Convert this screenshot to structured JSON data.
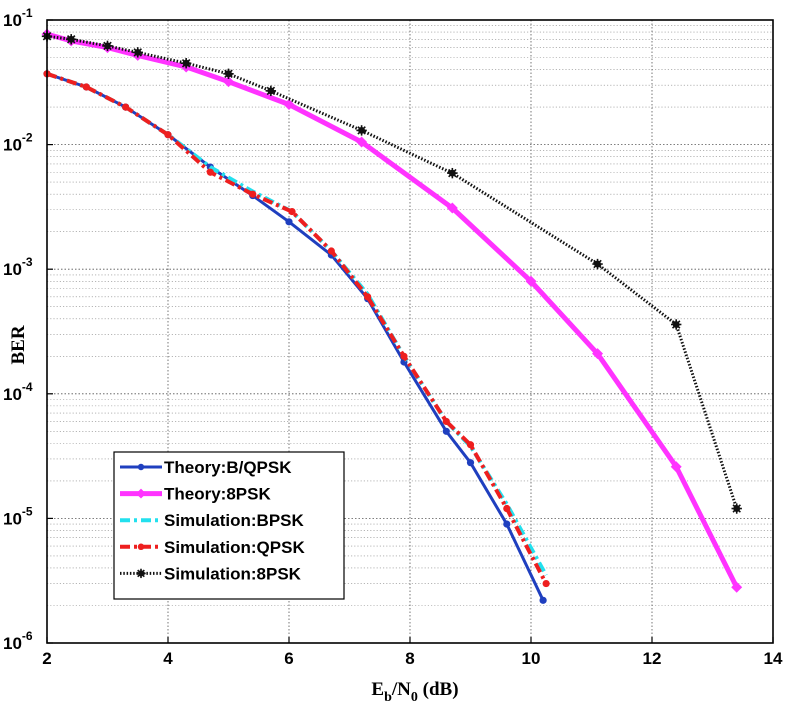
{
  "chart_data": {
    "type": "line",
    "xlabel": "E_b/N_0 (dB)",
    "xlabel_parts": {
      "E": "E",
      "b": "b",
      "slash": "/N",
      "zero": "0",
      "unit": " (dB)"
    },
    "ylabel": "BER",
    "xlim": [
      2,
      14
    ],
    "ylim": [
      1e-06,
      0.1
    ],
    "yscale": "log",
    "grid": true,
    "legend_position": "bottom-left",
    "xticks": [
      "2",
      "4",
      "6",
      "8",
      "10",
      "12",
      "14"
    ],
    "yticks": [
      {
        "base": "10",
        "exp": "-1"
      },
      {
        "base": "10",
        "exp": "-2"
      },
      {
        "base": "10",
        "exp": "-3"
      },
      {
        "base": "10",
        "exp": "-4"
      },
      {
        "base": "10",
        "exp": "-5"
      },
      {
        "base": "10",
        "exp": "-6"
      }
    ],
    "series": [
      {
        "name": "Theory:B/QPSK",
        "color": "#1f3fbf",
        "style": "solid",
        "marker": "dot",
        "x": [
          2.0,
          2.65,
          3.3,
          4.0,
          4.7,
          5.4,
          6.0,
          6.7,
          7.3,
          7.9,
          8.6,
          9.0,
          9.6,
          10.2
        ],
        "y": [
          0.037,
          0.029,
          0.02,
          0.012,
          0.0066,
          0.0039,
          0.0024,
          0.0013,
          0.00058,
          0.00018,
          5e-05,
          2.8e-05,
          9e-06,
          2.2e-06
        ]
      },
      {
        "name": "Theory:8PSK",
        "color": "#ff33ff",
        "style": "solid-thick",
        "marker": "diamond",
        "x": [
          2.0,
          2.4,
          3.0,
          3.5,
          4.3,
          5.0,
          6.0,
          7.2,
          8.7,
          10.0,
          11.1,
          12.4,
          13.4
        ],
        "y": [
          0.077,
          0.068,
          0.06,
          0.052,
          0.042,
          0.032,
          0.021,
          0.0105,
          0.0031,
          0.0008,
          0.00021,
          2.6e-05,
          2.8e-06
        ]
      },
      {
        "name": "Simulation:BPSK",
        "color": "#22e0ee",
        "style": "dash-dot",
        "marker": "none",
        "x": [
          2.0,
          2.65,
          3.3,
          4.0,
          4.7,
          5.4,
          6.05,
          6.7,
          7.3,
          7.9,
          8.6,
          9.0,
          9.6,
          10.25
        ],
        "y": [
          0.037,
          0.029,
          0.02,
          0.012,
          0.0066,
          0.0042,
          0.0029,
          0.0014,
          0.00063,
          0.0002,
          6e-05,
          3.8e-05,
          1.3e-05,
          3.5e-06
        ]
      },
      {
        "name": "Simulation:QPSK",
        "color": "#ee1f1f",
        "style": "dash-dot",
        "marker": "dot",
        "x": [
          2.0,
          2.65,
          3.3,
          4.0,
          4.7,
          5.4,
          6.05,
          6.7,
          7.3,
          7.9,
          8.6,
          9.0,
          9.6,
          10.25
        ],
        "y": [
          0.037,
          0.029,
          0.02,
          0.012,
          0.006,
          0.004,
          0.0029,
          0.0014,
          0.0006,
          0.0002,
          6e-05,
          3.9e-05,
          1.2e-05,
          3e-06
        ]
      },
      {
        "name": "Simulation:8PSK",
        "color": "#111111",
        "style": "dotted",
        "marker": "star",
        "x": [
          2.0,
          2.4,
          3.0,
          3.5,
          4.3,
          5.0,
          5.7,
          7.2,
          8.7,
          11.1,
          12.4,
          13.4
        ],
        "y": [
          0.074,
          0.07,
          0.062,
          0.055,
          0.045,
          0.037,
          0.027,
          0.013,
          0.0059,
          0.0011,
          0.00036,
          1.2e-05
        ]
      }
    ]
  }
}
